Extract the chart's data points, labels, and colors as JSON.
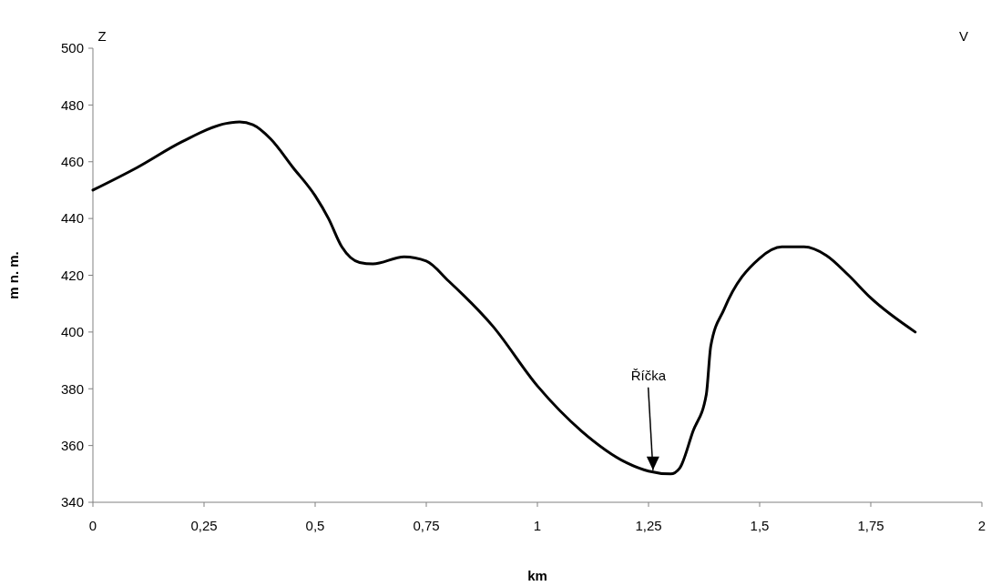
{
  "chart_data": {
    "type": "line",
    "xlabel": "km",
    "ylabel": "m n. m.",
    "x": [
      0,
      0.1,
      0.2,
      0.3,
      0.33,
      0.36,
      0.4,
      0.45,
      0.5,
      0.53,
      0.56,
      0.6,
      0.63,
      0.7,
      0.75,
      0.8,
      0.9,
      1.0,
      1.1,
      1.2,
      1.25,
      1.3,
      1.32,
      1.35,
      1.38,
      1.39,
      1.42,
      1.5,
      1.55,
      1.6,
      1.65,
      1.7,
      1.75,
      1.85
    ],
    "series": [
      {
        "color": "#000000",
        "values": [
          450,
          458,
          467,
          473.5,
          474,
          473,
          468,
          458,
          448,
          440,
          430,
          424.5,
          424,
          426.5,
          425,
          418,
          402,
          381,
          365,
          354,
          351,
          350,
          352,
          365,
          378,
          395,
          408,
          426,
          430,
          430,
          427,
          420,
          412,
          400
        ]
      }
    ],
    "xlim": [
      0,
      2
    ],
    "ylim": [
      340,
      500
    ],
    "xticks": [
      0,
      {
        "value": 0.25,
        "label": "0,25"
      },
      {
        "value": 0.5,
        "label": "0,5"
      },
      {
        "value": 0.75,
        "label": "0,75"
      },
      1,
      {
        "value": 1.25,
        "label": "1,25"
      },
      {
        "value": 1.5,
        "label": "1,5"
      },
      {
        "value": 1.75,
        "label": "1,75"
      },
      2
    ],
    "yticks": [
      340,
      360,
      380,
      400,
      420,
      440,
      460,
      480,
      500
    ],
    "grid": false,
    "marker": "none",
    "line_style": "solid",
    "annotations": [
      "Z",
      "V",
      {
        "text": "Říčka",
        "x": 1.26,
        "y": 351
      }
    ]
  }
}
